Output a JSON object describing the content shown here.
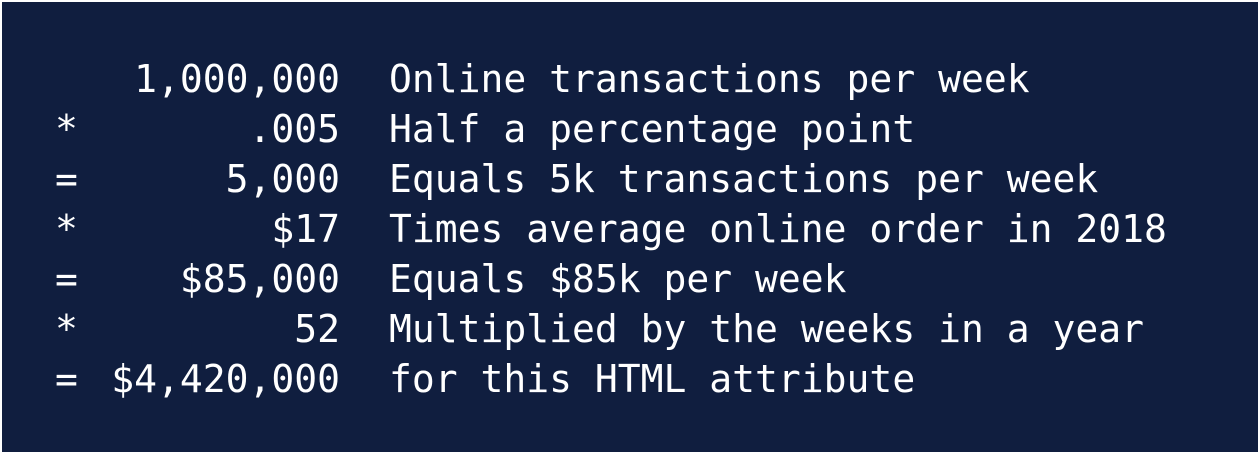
{
  "rows": [
    {
      "value": "1,000,000",
      "text": "Online transactions per week"
    },
    {
      "op": "*",
      "value": ".005",
      "text": "Half a percentage point"
    },
    {
      "op": "=",
      "value": "5,000",
      "text": "Equals 5k transactions per week"
    },
    {
      "op": "*",
      "value": "$17",
      "text": "Times average online order in 2018"
    },
    {
      "op": "=",
      "value": "$85,000",
      "text": "Equals $85k per week"
    },
    {
      "op": "*",
      "value": "52",
      "text": "Multiplied by the weeks in a year"
    },
    {
      "op": "=",
      "value": "$4,420,000",
      "text": "for this HTML attribute"
    }
  ]
}
